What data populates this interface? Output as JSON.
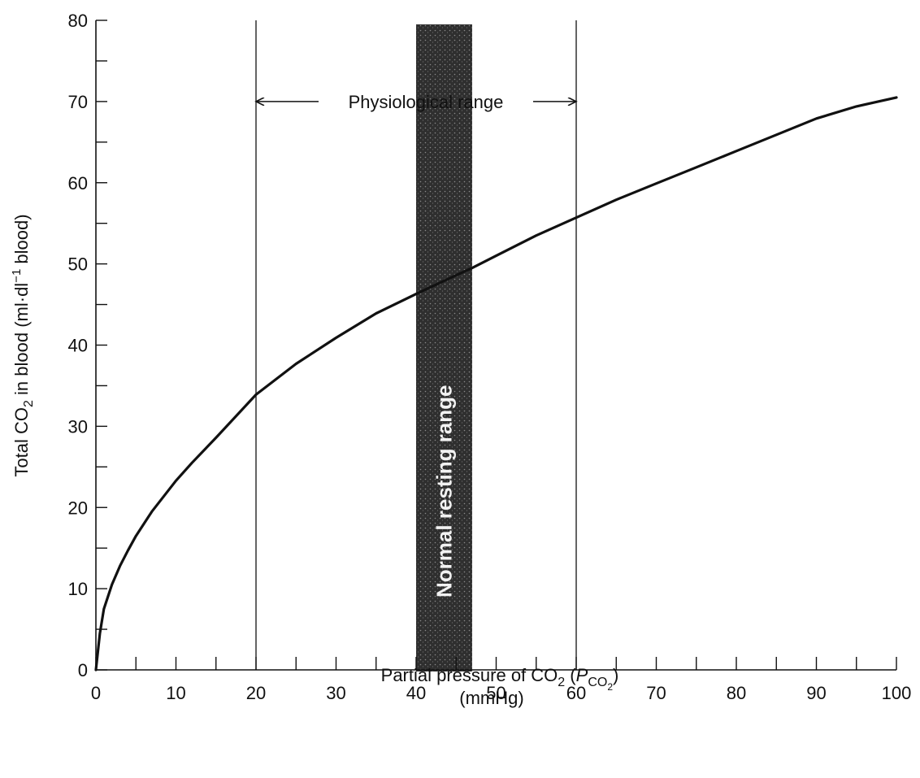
{
  "chart_data": {
    "type": "line",
    "title": "",
    "xlabel": "Partial pressure of CO",
    "xlabel_sub": "2",
    "xlabel_symbol": "P",
    "xlabel_symbol_sub": "CO",
    "xlabel_symbol_subsub": "2",
    "xlabel_open": " (",
    "xlabel_close": ")",
    "xunits": "(mmHg)",
    "ylabel_pre": "Total CO",
    "ylabel_sub": "2",
    "ylabel_mid": " in blood (ml·dl",
    "ylabel_sup": "−1",
    "ylabel_post": " blood)",
    "xlim": [
      0,
      100
    ],
    "ylim": [
      0,
      80
    ],
    "x_ticks": [
      0,
      10,
      20,
      30,
      40,
      50,
      60,
      70,
      80,
      90,
      100
    ],
    "x_tick_labels": [
      "0",
      "10",
      "20",
      "30",
      "40",
      "50",
      "60",
      "70",
      "80",
      "90",
      "100"
    ],
    "y_ticks": [
      0,
      10,
      20,
      30,
      40,
      50,
      60,
      70,
      80
    ],
    "y_tick_labels": [
      "0",
      "10",
      "20",
      "30",
      "40",
      "50",
      "60",
      "70",
      "80"
    ],
    "x_minor_step": 5,
    "y_minor_step": 5,
    "grid": false,
    "series": [
      {
        "x": [
          0,
          0.5,
          1,
          2,
          3,
          4,
          5,
          7,
          10,
          12,
          15,
          20,
          25,
          30,
          35,
          40,
          45,
          47,
          50,
          55,
          60,
          65,
          70,
          75,
          80,
          85,
          90,
          95,
          100
        ],
        "y": [
          0,
          4.5,
          7.5,
          10.5,
          12.8,
          14.7,
          16.5,
          19.5,
          23.3,
          25.5,
          28.6,
          33.9,
          37.7,
          40.9,
          43.9,
          46.3,
          48.6,
          49.5,
          51.0,
          53.5,
          55.7,
          57.9,
          59.9,
          61.9,
          63.9,
          65.9,
          67.9,
          69.4,
          70.5
        ],
        "color": "#111111"
      }
    ],
    "vertical_lines": [
      {
        "x": 20,
        "label": ""
      },
      {
        "x": 60,
        "label": ""
      }
    ],
    "shaded_band": {
      "x_start": 40,
      "x_end": 47,
      "label": "Normal resting range",
      "color": "#3a3a3a"
    },
    "range_annotation": {
      "x_start": 20,
      "x_end": 60,
      "y": 70,
      "label": "Physiological range"
    }
  }
}
